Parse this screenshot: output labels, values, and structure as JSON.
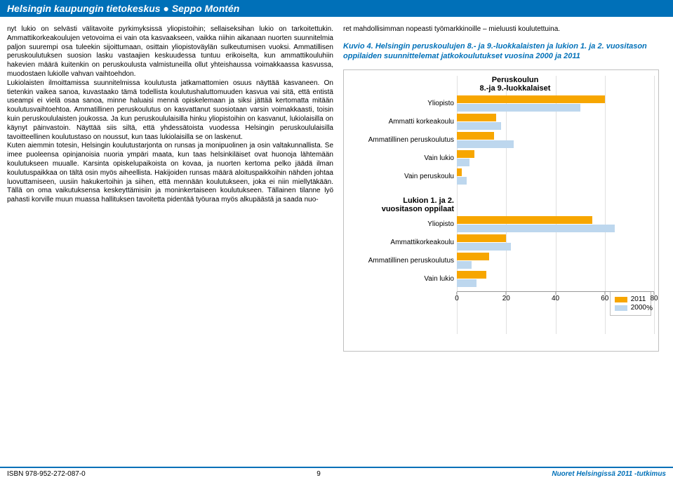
{
  "header": {
    "left": "Helsingin kaupungin tietokeskus",
    "dot": "●",
    "right": "Seppo Montén"
  },
  "left_column_text": "nyt lukio on selvästi välitavoite pyrkimyksissä yliopistoihin; sellaiseksihan lukio on tarkoitettukin. Ammattikorkeakoulujen vetovoima ei vain ota kasvaakseen, vaikka niihin aikanaan nuorten suunnitelmia paljon suurempi osa tuleekin sijoittumaan, osittain yliopistoväylän sulkeutumisen vuoksi. Ammatillisen peruskoulutuksen suosion lasku vastaajien keskuudessa tuntuu erikoiselta, kun ammattikouluhiin hakevien määrä kuitenkin on peruskoulusta valmistuneilla ollut yhteishaussa voimakkaassa kasvussa, muodostaen lukiolle vahvan vaihtoehdon.\n    Lukiolaisten ilmoittamissa suunnitelmissa koulutusta jatkamattomien osuus näyttää kasvaneen. On tietenkin vaikea sanoa, kuvastaako tämä todellista koulutushaluttomuuden kasvua vai sitä, että entistä useampi ei vielä osaa sanoa, minne haluaisi mennä opiskelemaan ja siksi jättää kertomatta mitään koulutusvaihtoehtoa. Ammatillinen peruskoulutus on kasvattanut suosiotaan varsin voimakkaasti, toisin kuin peruskoululaisten joukossa. Ja kun peruskoululaisilla hinku yliopistoihin on kasvanut, lukiolaisilla on käynyt päinvastoin. Näyttää siis siltä, että yhdessätoista vuodessa Helsingin peruskoululaisilla tavoitteellinen koulutustaso on noussut, kun taas lukiolaisilla se on laskenut.\n    Kuten aiemmin totesin, Helsingin koulutustarjonta on runsas ja monipuolinen ja osin valtakunnallista. Se imee puoleensa opinjanoisia nuoria ympäri maata, kun taas helsinkiläiset ovat huonoja lähtemään koulutukseen muualle. Karsinta opiskelupaikoista on kovaa, ja nuorten kertoma pelko jäädä ilman koulutuspaikkaa on tältä osin myös aiheellista. Hakijoiden runsas määrä aloituspaikkoihin nähden johtaa luovuttamiseen, uusiin hakukertoihin ja siihen, että mennään koulutukseen, joka ei niin miellytäkään. Tällä on oma vaikutuksensa keskeyttämisiin ja moninkertaiseen koulutukseen. Tällainen tilanne lyö pahasti korville muun muassa hallituksen tavoitetta pidentää työuraa myös alkupäästä ja saada nuo-",
  "right_top_text": "ret mahdollisimman nopeasti työmarkkinoille – mieluusti koulutettuina.",
  "chart_caption": "Kuvio 4. Helsingin peruskoulujen 8.- ja 9.-luokkalaisten ja lukion 1. ja 2. vuositason oppilaiden suunnittelemat jatkokoulutukset vuosina 2000 ja 2011",
  "chart": {
    "type": "grouped-horizontal-bar",
    "xlim": [
      0,
      80
    ],
    "xtick_step": 20,
    "x_unit": "%",
    "bar_color_2011": "#f7a600",
    "bar_color_2000": "#bdd7ee",
    "grid_color": "#e0e0e0",
    "border_color": "#bfbfbf",
    "section1": {
      "heading_line1": "Peruskoulun",
      "heading_line2": "8.-ja 9.-luokkalaiset",
      "categories": [
        {
          "label": "Yliopisto",
          "v2011": 60,
          "v2000": 50
        },
        {
          "label": "Ammatti korkeakoulu",
          "v2011": 16,
          "v2000": 18
        },
        {
          "label": "Ammatillinen peruskoulutus",
          "v2011": 15,
          "v2000": 23
        },
        {
          "label": "Vain lukio",
          "v2011": 7,
          "v2000": 5
        },
        {
          "label": "Vain peruskoulu",
          "v2011": 2,
          "v2000": 4
        }
      ]
    },
    "section2": {
      "heading_line1": "Lukion 1. ja 2.",
      "heading_line2": "vuositason oppilaat",
      "categories": [
        {
          "label": "Yliopisto",
          "v2011": 55,
          "v2000": 64
        },
        {
          "label": "Ammattikorkeakoulu",
          "v2011": 20,
          "v2000": 22
        },
        {
          "label": "Ammatillinen peruskoulutus",
          "v2011": 13,
          "v2000": 6
        },
        {
          "label": "Vain lukio",
          "v2011": 12,
          "v2000": 8
        }
      ]
    },
    "legend": [
      {
        "label": "2011",
        "color": "#f7a600"
      },
      {
        "label": "2000",
        "color": "#bdd7ee"
      }
    ]
  },
  "footer": {
    "isbn": "ISBN 978-952-272-087-0",
    "page": "9",
    "study": "Nuoret Helsingissä 2011 -tutkimus"
  }
}
